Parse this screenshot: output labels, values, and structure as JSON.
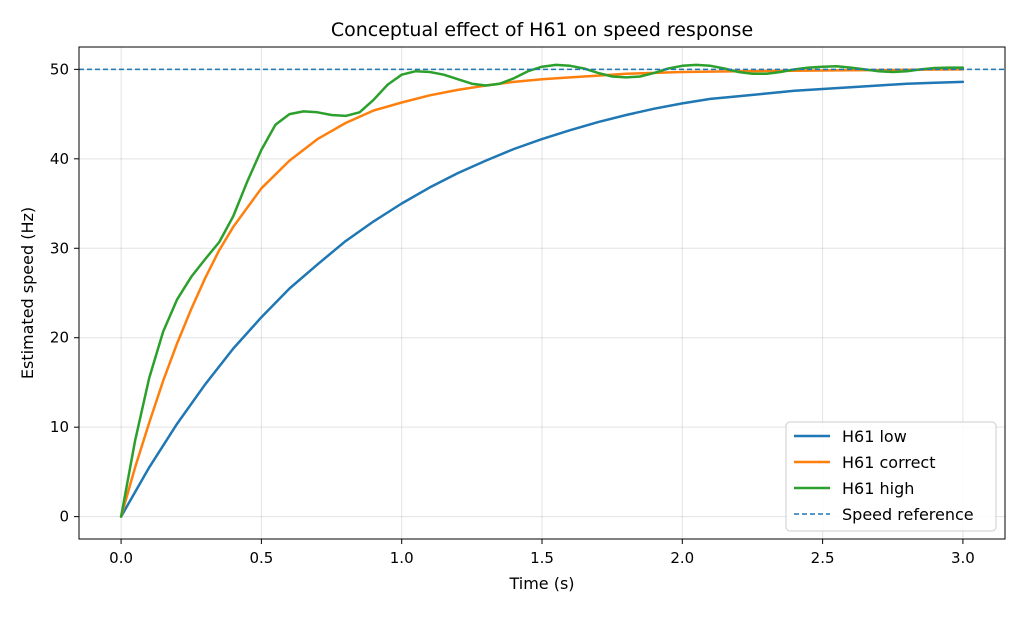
{
  "chart_data": {
    "type": "line",
    "title": "Conceptual effect of H61 on speed response",
    "xlabel": "Time (s)",
    "ylabel": "Estimated speed (Hz)",
    "xlim": [
      -0.15,
      3.15
    ],
    "ylim": [
      -2.5,
      52.5
    ],
    "xticks": [
      0.0,
      0.5,
      1.0,
      1.5,
      2.0,
      2.5,
      3.0
    ],
    "xtick_labels": [
      "0.0",
      "0.5",
      "1.0",
      "1.5",
      "2.0",
      "2.5",
      "3.0"
    ],
    "yticks": [
      0,
      10,
      20,
      30,
      40,
      50
    ],
    "ytick_labels": [
      "0",
      "10",
      "20",
      "30",
      "40",
      "50"
    ],
    "grid": true,
    "legend_position": "lower-right",
    "series": [
      {
        "name": "H61 low",
        "color": "#1f77b4",
        "style": "solid",
        "points": [
          [
            0.0,
            0.0
          ],
          [
            0.1,
            5.5
          ],
          [
            0.2,
            10.4
          ],
          [
            0.3,
            14.8
          ],
          [
            0.4,
            18.8
          ],
          [
            0.5,
            22.3
          ],
          [
            0.6,
            25.5
          ],
          [
            0.7,
            28.2
          ],
          [
            0.8,
            30.8
          ],
          [
            0.9,
            33.0
          ],
          [
            1.0,
            35.0
          ],
          [
            1.1,
            36.8
          ],
          [
            1.2,
            38.4
          ],
          [
            1.3,
            39.8
          ],
          [
            1.4,
            41.1
          ],
          [
            1.5,
            42.2
          ],
          [
            1.6,
            43.2
          ],
          [
            1.7,
            44.1
          ],
          [
            1.8,
            44.9
          ],
          [
            1.9,
            45.6
          ],
          [
            2.0,
            46.2
          ],
          [
            2.1,
            46.7
          ],
          [
            2.2,
            47.0
          ],
          [
            2.3,
            47.3
          ],
          [
            2.4,
            47.6
          ],
          [
            2.5,
            47.8
          ],
          [
            2.6,
            48.0
          ],
          [
            2.7,
            48.2
          ],
          [
            2.8,
            48.4
          ],
          [
            2.9,
            48.5
          ],
          [
            3.0,
            48.6
          ]
        ]
      },
      {
        "name": "H61 correct",
        "color": "#ff7f0e",
        "style": "solid",
        "points": [
          [
            0.0,
            0.0
          ],
          [
            0.05,
            5.5
          ],
          [
            0.1,
            10.5
          ],
          [
            0.15,
            15.2
          ],
          [
            0.2,
            19.4
          ],
          [
            0.25,
            23.2
          ],
          [
            0.3,
            26.7
          ],
          [
            0.35,
            29.8
          ],
          [
            0.4,
            32.4
          ],
          [
            0.5,
            36.7
          ],
          [
            0.6,
            39.8
          ],
          [
            0.7,
            42.2
          ],
          [
            0.8,
            44.0
          ],
          [
            0.9,
            45.4
          ],
          [
            1.0,
            46.3
          ],
          [
            1.1,
            47.1
          ],
          [
            1.2,
            47.7
          ],
          [
            1.3,
            48.2
          ],
          [
            1.4,
            48.6
          ],
          [
            1.5,
            48.9
          ],
          [
            1.6,
            49.1
          ],
          [
            1.7,
            49.3
          ],
          [
            1.8,
            49.5
          ],
          [
            1.9,
            49.6
          ],
          [
            2.0,
            49.7
          ],
          [
            2.2,
            49.8
          ],
          [
            2.4,
            49.85
          ],
          [
            2.6,
            49.9
          ],
          [
            2.8,
            49.95
          ],
          [
            3.0,
            50.0
          ]
        ]
      },
      {
        "name": "H61 high",
        "color": "#2ca02c",
        "style": "solid",
        "points": [
          [
            0.0,
            0.0
          ],
          [
            0.05,
            8.5
          ],
          [
            0.1,
            15.5
          ],
          [
            0.15,
            20.7
          ],
          [
            0.2,
            24.3
          ],
          [
            0.25,
            26.8
          ],
          [
            0.3,
            28.8
          ],
          [
            0.35,
            30.7
          ],
          [
            0.4,
            33.6
          ],
          [
            0.45,
            37.5
          ],
          [
            0.5,
            41.0
          ],
          [
            0.55,
            43.8
          ],
          [
            0.6,
            45.0
          ],
          [
            0.65,
            45.3
          ],
          [
            0.7,
            45.2
          ],
          [
            0.75,
            44.9
          ],
          [
            0.8,
            44.8
          ],
          [
            0.85,
            45.2
          ],
          [
            0.9,
            46.6
          ],
          [
            0.95,
            48.3
          ],
          [
            1.0,
            49.4
          ],
          [
            1.05,
            49.8
          ],
          [
            1.1,
            49.7
          ],
          [
            1.15,
            49.4
          ],
          [
            1.2,
            48.9
          ],
          [
            1.25,
            48.4
          ],
          [
            1.3,
            48.2
          ],
          [
            1.35,
            48.4
          ],
          [
            1.4,
            49.0
          ],
          [
            1.45,
            49.8
          ],
          [
            1.5,
            50.3
          ],
          [
            1.55,
            50.5
          ],
          [
            1.6,
            50.4
          ],
          [
            1.65,
            50.1
          ],
          [
            1.7,
            49.6
          ],
          [
            1.75,
            49.2
          ],
          [
            1.8,
            49.1
          ],
          [
            1.85,
            49.2
          ],
          [
            1.9,
            49.6
          ],
          [
            1.95,
            50.1
          ],
          [
            2.0,
            50.4
          ],
          [
            2.05,
            50.5
          ],
          [
            2.1,
            50.4
          ],
          [
            2.15,
            50.1
          ],
          [
            2.2,
            49.7
          ],
          [
            2.25,
            49.5
          ],
          [
            2.3,
            49.5
          ],
          [
            2.35,
            49.7
          ],
          [
            2.4,
            50.0
          ],
          [
            2.45,
            50.2
          ],
          [
            2.5,
            50.3
          ],
          [
            2.55,
            50.35
          ],
          [
            2.6,
            50.2
          ],
          [
            2.65,
            50.0
          ],
          [
            2.7,
            49.8
          ],
          [
            2.75,
            49.7
          ],
          [
            2.8,
            49.8
          ],
          [
            2.85,
            50.0
          ],
          [
            2.9,
            50.15
          ],
          [
            2.95,
            50.2
          ],
          [
            3.0,
            50.2
          ]
        ]
      },
      {
        "name": "Speed reference",
        "color": "#1f77b4",
        "style": "dashed",
        "points": [
          [
            -0.15,
            50.0
          ],
          [
            3.15,
            50.0
          ]
        ]
      }
    ]
  }
}
